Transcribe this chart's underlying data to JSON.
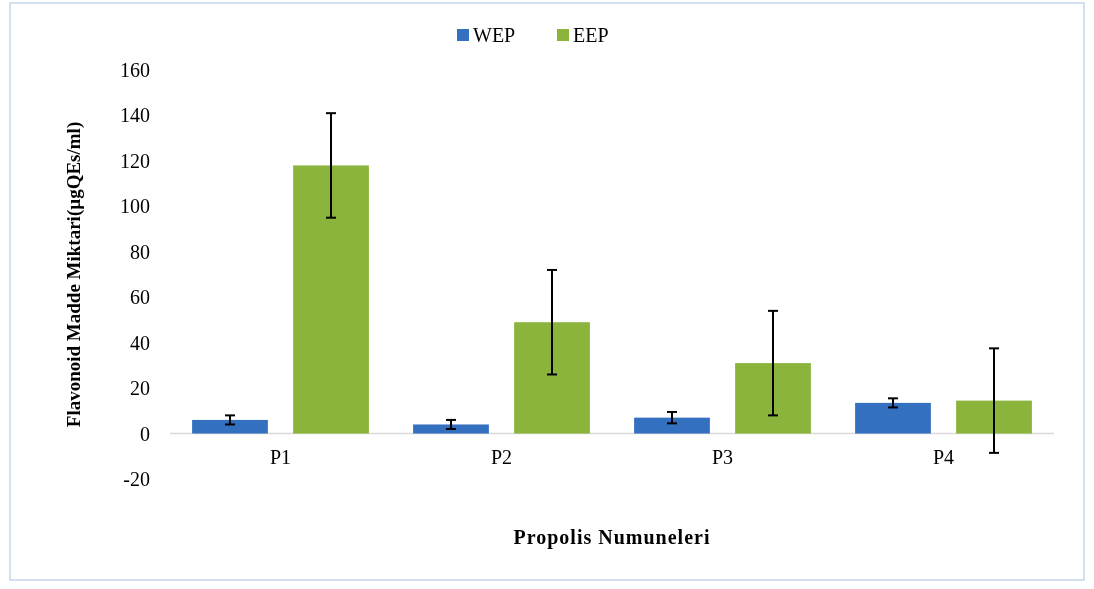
{
  "chart_data": {
    "type": "bar",
    "xlabel": "Propolis Numuneleri",
    "ylabel": "Flavonoid Madde Miktari(µgQEs/ml)",
    "categories": [
      "P1",
      "P2",
      "P3",
      "P4"
    ],
    "series": [
      {
        "name": "WEP",
        "color": "#3470c0",
        "values": [
          6,
          4,
          7,
          13.5
        ],
        "errors": [
          2,
          2,
          2.5,
          2
        ]
      },
      {
        "name": "EEP",
        "color": "#8ab43c",
        "values": [
          118,
          49,
          31,
          14.5
        ],
        "errors": [
          23,
          23,
          23,
          23
        ]
      }
    ],
    "ylim": [
      -20,
      160
    ],
    "yticks": [
      -20,
      0,
      20,
      40,
      60,
      80,
      100,
      120,
      140,
      160
    ],
    "grid": false,
    "legend": "top"
  }
}
